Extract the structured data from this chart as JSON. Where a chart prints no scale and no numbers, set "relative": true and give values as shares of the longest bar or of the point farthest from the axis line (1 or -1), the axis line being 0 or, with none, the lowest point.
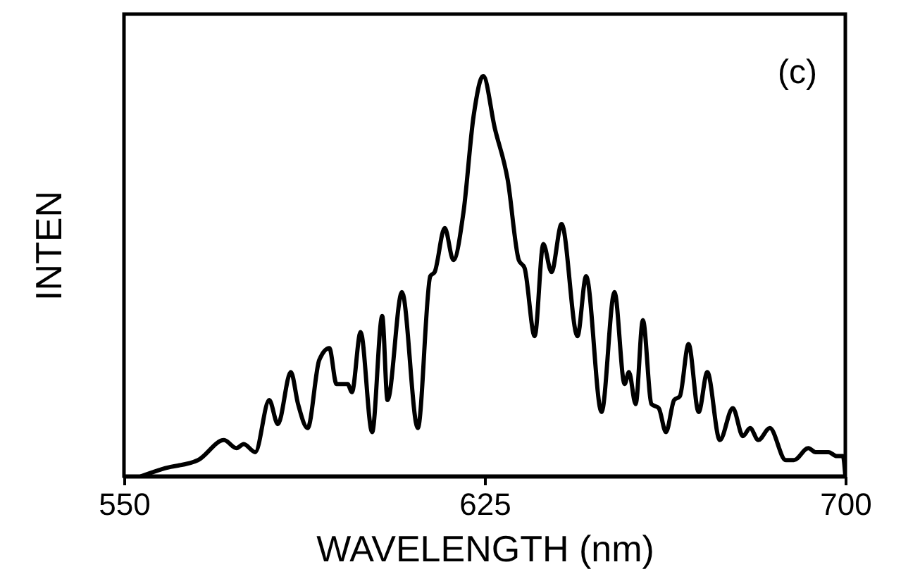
{
  "chart_data": {
    "type": "line",
    "relative": true,
    "xlabel": "WAVELENGTH (nm)",
    "ylabel": "INTEN",
    "annotations": [
      "(c)"
    ],
    "xlim": [
      550,
      700
    ],
    "xticks": [
      550,
      625,
      700
    ],
    "grid": false,
    "marker": "none",
    "line_style": "solid",
    "x": [
      553.6,
      558.6,
      565.4,
      570.8,
      573.4,
      574.9,
      577.3,
      580.2,
      582.0,
      584.7,
      586.2,
      588.2,
      590.6,
      592.7,
      594.2,
      596.5,
      597.4,
      599.2,
      601.6,
      603.7,
      604.8,
      607.8,
      611.1,
      613.7,
      614.6,
      616.7,
      618.5,
      620.6,
      622.7,
      624.7,
      627.1,
      629.8,
      632.1,
      633.3,
      635.4,
      637.2,
      638.9,
      641.0,
      644.3,
      646.1,
      649.3,
      652.0,
      654.1,
      655.0,
      656.4,
      657.9,
      659.7,
      661.2,
      662.7,
      664.4,
      665.6,
      667.4,
      669.5,
      671.3,
      673.9,
      676.6,
      678.7,
      680.2,
      681.9,
      684.3,
      687.6,
      689.3,
      692.3,
      693.8,
      696.5,
      698.2,
      699.5,
      700
    ],
    "series": [
      {
        "color": "#000000",
        "values": [
          0.0,
          0.02,
          0.04,
          0.09,
          0.07,
          0.08,
          0.06,
          0.19,
          0.13,
          0.26,
          0.18,
          0.12,
          0.29,
          0.32,
          0.23,
          0.23,
          0.21,
          0.36,
          0.11,
          0.4,
          0.19,
          0.46,
          0.12,
          0.5,
          0.51,
          0.62,
          0.54,
          0.66,
          0.9,
          1.0,
          0.87,
          0.74,
          0.54,
          0.52,
          0.35,
          0.58,
          0.51,
          0.63,
          0.35,
          0.5,
          0.16,
          0.46,
          0.23,
          0.26,
          0.18,
          0.39,
          0.18,
          0.17,
          0.11,
          0.19,
          0.2,
          0.33,
          0.16,
          0.26,
          0.09,
          0.17,
          0.1,
          0.12,
          0.09,
          0.12,
          0.04,
          0.04,
          0.07,
          0.06,
          0.06,
          0.05,
          0.05,
          0.0
        ]
      }
    ]
  }
}
